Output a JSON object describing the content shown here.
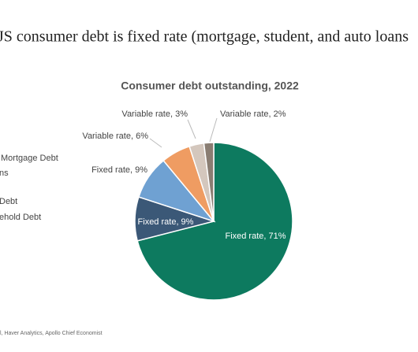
{
  "slide": {
    "title": "JS consumer debt is fixed rate (mortgage, student, and auto loans",
    "legend_fragments": [
      "Mortgage Debt",
      "ns",
      "Debt",
      "ehold Debt"
    ],
    "source": "l, Haver Analytics, Apollo Chief Economist"
  },
  "chart_data": {
    "type": "pie",
    "title": "Consumer debt outstanding, 2022",
    "values": [
      71,
      9,
      9,
      6,
      3,
      2
    ],
    "value_labels": [
      "Fixed rate, 71%",
      "Fixed rate, 9%",
      "Fixed rate, 9%",
      "Variable rate, 6%",
      "Variable rate, 3%",
      "Variable rate, 2%"
    ],
    "colors": [
      "#0d7a5f",
      "#3b5877",
      "#6fa1d2",
      "#ef9c62",
      "#d4c7bd",
      "#8a7d72"
    ]
  }
}
